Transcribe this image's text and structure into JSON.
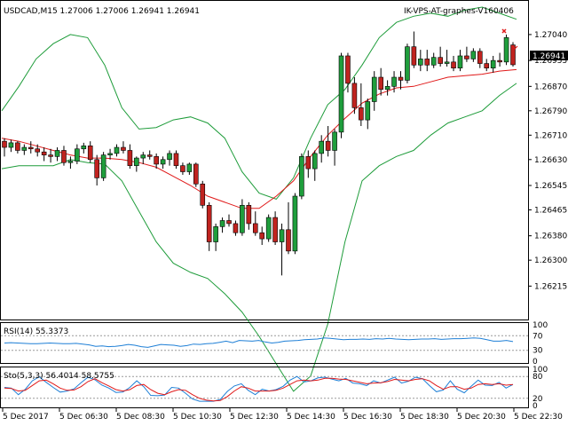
{
  "chart_data": {
    "type": "candlestick",
    "symbol_line": "USDCAD,M15  1.27006 1.27006 1.26941 1.26941",
    "indicator_label": "IK-VPS-AT-graphes-V160406",
    "price": {
      "ylim": [
        1.2612,
        1.2713
      ],
      "y_ticks": [
        "1.27040",
        "1.26955",
        "1.26870",
        "1.26790",
        "1.26710",
        "1.26630",
        "1.26545",
        "1.26465",
        "1.26380",
        "1.26300",
        "1.26215"
      ],
      "current_price": "1.26941",
      "colors": {
        "bull": "#1f9e3c",
        "bear": "#c0231f",
        "bands": "#1e9c3a",
        "ma": "#e01919",
        "current_box": "#000000"
      },
      "candles": [
        [
          1.2669,
          1.267,
          1.2664,
          1.2667
        ],
        [
          1.2667,
          1.26695,
          1.26655,
          1.26685
        ],
        [
          1.26685,
          1.2669,
          1.2665,
          1.2666
        ],
        [
          1.2666,
          1.2668,
          1.26645,
          1.2667
        ],
        [
          1.2667,
          1.2669,
          1.2665,
          1.26665
        ],
        [
          1.26665,
          1.2668,
          1.2664,
          1.26655
        ],
        [
          1.26655,
          1.2667,
          1.26625,
          1.26645
        ],
        [
          1.26645,
          1.26665,
          1.2662,
          1.2664
        ],
        [
          1.2664,
          1.2667,
          1.26625,
          1.2666
        ],
        [
          1.2666,
          1.26675,
          1.2661,
          1.2662
        ],
        [
          1.2662,
          1.2664,
          1.266,
          1.26625
        ],
        [
          1.26625,
          1.2668,
          1.26615,
          1.26665
        ],
        [
          1.26665,
          1.26685,
          1.2665,
          1.26675
        ],
        [
          1.26675,
          1.2669,
          1.2662,
          1.2663
        ],
        [
          1.2663,
          1.26645,
          1.26545,
          1.2657
        ],
        [
          1.2657,
          1.26655,
          1.2656,
          1.26645
        ],
        [
          1.26645,
          1.26665,
          1.2663,
          1.2665
        ],
        [
          1.2665,
          1.2668,
          1.2664,
          1.2667
        ],
        [
          1.2667,
          1.2669,
          1.2665,
          1.2666
        ],
        [
          1.2666,
          1.2668,
          1.266,
          1.2661
        ],
        [
          1.2661,
          1.2664,
          1.2659,
          1.26635
        ],
        [
          1.26635,
          1.26655,
          1.26615,
          1.26645
        ],
        [
          1.26645,
          1.2666,
          1.2663,
          1.2664
        ],
        [
          1.2664,
          1.2665,
          1.266,
          1.26615
        ],
        [
          1.26615,
          1.2664,
          1.266,
          1.2663
        ],
        [
          1.2663,
          1.2666,
          1.2661,
          1.2665
        ],
        [
          1.2665,
          1.2666,
          1.266,
          1.2661
        ],
        [
          1.2661,
          1.2662,
          1.2658,
          1.2659
        ],
        [
          1.2659,
          1.2662,
          1.2658,
          1.26615
        ],
        [
          1.26615,
          1.2662,
          1.2654,
          1.2655
        ],
        [
          1.2655,
          1.2656,
          1.2647,
          1.2648
        ],
        [
          1.2648,
          1.2649,
          1.2633,
          1.2636
        ],
        [
          1.2636,
          1.2642,
          1.2633,
          1.2641
        ],
        [
          1.2641,
          1.2644,
          1.2639,
          1.2643
        ],
        [
          1.2643,
          1.2645,
          1.2641,
          1.2642
        ],
        [
          1.2642,
          1.2643,
          1.2638,
          1.2639
        ],
        [
          1.2639,
          1.265,
          1.2638,
          1.2648
        ],
        [
          1.2648,
          1.2649,
          1.264,
          1.2642
        ],
        [
          1.2642,
          1.2646,
          1.2638,
          1.2639
        ],
        [
          1.2639,
          1.2641,
          1.2635,
          1.2637
        ],
        [
          1.2637,
          1.2645,
          1.2636,
          1.2644
        ],
        [
          1.2644,
          1.2646,
          1.2635,
          1.2636
        ],
        [
          1.2636,
          1.2642,
          1.2625,
          1.264
        ],
        [
          1.264,
          1.2649,
          1.2632,
          1.2633
        ],
        [
          1.2633,
          1.2652,
          1.2632,
          1.2651
        ],
        [
          1.2651,
          1.2665,
          1.265,
          1.2664
        ],
        [
          1.2664,
          1.2666,
          1.2657,
          1.266
        ],
        [
          1.266,
          1.2666,
          1.2656,
          1.2665
        ],
        [
          1.2665,
          1.2671,
          1.2662,
          1.2669
        ],
        [
          1.2669,
          1.2674,
          1.2664,
          1.2666
        ],
        [
          1.2666,
          1.2673,
          1.2661,
          1.2672
        ],
        [
          1.2672,
          1.2698,
          1.267,
          1.2697
        ],
        [
          1.2697,
          1.2698,
          1.2685,
          1.2688
        ],
        [
          1.2688,
          1.269,
          1.2678,
          1.268
        ],
        [
          1.268,
          1.2688,
          1.2674,
          1.2676
        ],
        [
          1.2676,
          1.2683,
          1.2673,
          1.2682
        ],
        [
          1.2682,
          1.2692,
          1.2679,
          1.269
        ],
        [
          1.269,
          1.2693,
          1.2684,
          1.2686
        ],
        [
          1.2686,
          1.2689,
          1.2684,
          1.2687
        ],
        [
          1.2687,
          1.2692,
          1.2685,
          1.269
        ],
        [
          1.269,
          1.2692,
          1.2686,
          1.2689
        ],
        [
          1.2689,
          1.2701,
          1.2688,
          1.27
        ],
        [
          1.27,
          1.2705,
          1.2693,
          1.2694
        ],
        [
          1.2694,
          1.2699,
          1.2692,
          1.2696
        ],
        [
          1.2696,
          1.2699,
          1.2692,
          1.2694
        ],
        [
          1.2694,
          1.2698,
          1.2693,
          1.26965
        ],
        [
          1.26965,
          1.27,
          1.26935,
          1.26945
        ],
        [
          1.26945,
          1.2699,
          1.26935,
          1.2695
        ],
        [
          1.2695,
          1.2697,
          1.2692,
          1.2693
        ],
        [
          1.2693,
          1.2699,
          1.2692,
          1.2697
        ],
        [
          1.2697,
          1.27,
          1.2695,
          1.2696
        ],
        [
          1.2696,
          1.26995,
          1.2695,
          1.26985
        ],
        [
          1.26985,
          1.26995,
          1.2693,
          1.26945
        ],
        [
          1.26945,
          1.2696,
          1.2692,
          1.2693
        ],
        [
          1.2693,
          1.2697,
          1.26915,
          1.26955
        ],
        [
          1.26955,
          1.2698,
          1.26935,
          1.2695
        ],
        [
          1.2695,
          1.2704,
          1.2694,
          1.2703
        ],
        [
          1.27006,
          1.27015,
          1.26935,
          1.26941
        ]
      ],
      "bb_upper": [
        1.2679,
        1.2687,
        1.2696,
        1.2701,
        1.2704,
        1.2703,
        1.2694,
        1.268,
        1.2673,
        1.26735,
        1.2676,
        1.2677,
        1.2675,
        1.267,
        1.2659,
        1.2652,
        1.265,
        1.2657,
        1.267,
        1.2681,
        1.2686,
        1.2694,
        1.2703,
        1.2708,
        1.271,
        1.2711,
        1.271,
        1.2712,
        1.2713,
        1.2711,
        1.2709
      ],
      "bb_lower": [
        1.266,
        1.2661,
        1.2661,
        1.2661,
        1.2663,
        1.2662,
        1.26615,
        1.2656,
        1.2646,
        1.2636,
        1.2629,
        1.2626,
        1.2624,
        1.2619,
        1.2613,
        1.2605,
        1.2596,
        1.2587,
        1.2592,
        1.2609,
        1.2636,
        1.2656,
        1.2661,
        1.2664,
        1.2666,
        1.2671,
        1.2675,
        1.2677,
        1.2679,
        1.2684,
        1.2688
      ],
      "ma": [
        1.267,
        1.2669,
        1.26675,
        1.2666,
        1.26645,
        1.26635,
        1.26635,
        1.2663,
        1.2662,
        1.26605,
        1.26575,
        1.26545,
        1.2651,
        1.2649,
        1.2647,
        1.2647,
        1.2651,
        1.2656,
        1.2664,
        1.2671,
        1.26765,
        1.26815,
        1.26845,
        1.26865,
        1.2687,
        1.26885,
        1.269,
        1.26905,
        1.2691,
        1.2692,
        1.26925
      ]
    },
    "rsi": {
      "label": "RSI(14) 55.3373",
      "levels": [
        "100",
        "70",
        "30",
        "0"
      ],
      "values": [
        50,
        51,
        50,
        49,
        48,
        48,
        49,
        50,
        49,
        48,
        48,
        49,
        47,
        45,
        41,
        42,
        40,
        41,
        43,
        46,
        44,
        40,
        38,
        42,
        46,
        45,
        44,
        41,
        43,
        47,
        46,
        48,
        49,
        52,
        55,
        51,
        57,
        56,
        55,
        57,
        53,
        50,
        52,
        55,
        56,
        57,
        59,
        60,
        61,
        64,
        63,
        61,
        59,
        60,
        60,
        61,
        60,
        62,
        61,
        63,
        61,
        60,
        59,
        60,
        61,
        61,
        62,
        60,
        61,
        62,
        62,
        63,
        64,
        63,
        59,
        55,
        55,
        57,
        54
      ]
    },
    "stochastic": {
      "label": "Sto(5,3,3) 56.4014 58.5755",
      "levels": [
        "100",
        "80",
        "20",
        "0"
      ],
      "k": [
        50,
        48,
        30,
        45,
        68,
        79,
        64,
        50,
        37,
        40,
        46,
        63,
        78,
        71,
        56,
        48,
        36,
        37,
        50,
        68,
        52,
        28,
        27,
        29,
        50,
        48,
        34,
        18,
        12,
        12,
        12,
        17,
        39,
        54,
        60,
        42,
        30,
        45,
        40,
        44,
        53,
        70,
        80,
        65,
        68,
        76,
        78,
        73,
        68,
        75,
        62,
        60,
        55,
        68,
        62,
        70,
        78,
        62,
        67,
        78,
        74,
        55,
        38,
        43,
        68,
        45,
        35,
        53,
        70,
        56,
        55,
        64,
        48,
        58
      ],
      "d": [
        48,
        47,
        40,
        42,
        55,
        68,
        70,
        60,
        48,
        42,
        43,
        52,
        66,
        74,
        63,
        54,
        44,
        40,
        44,
        55,
        58,
        44,
        34,
        30,
        38,
        44,
        42,
        30,
        20,
        15,
        13,
        14,
        25,
        40,
        52,
        48,
        40,
        40,
        40,
        42,
        48,
        58,
        68,
        70,
        68,
        70,
        75,
        75,
        73,
        72,
        68,
        64,
        60,
        62,
        63,
        66,
        72,
        70,
        68,
        72,
        74,
        68,
        55,
        45,
        52,
        52,
        45,
        48,
        58,
        60,
        58,
        60,
        56,
        58
      ]
    },
    "x_labels": [
      "5 Dec 2017",
      "5 Dec 06:30",
      "5 Dec 08:30",
      "5 Dec 10:30",
      "5 Dec 12:30",
      "5 Dec 14:30",
      "5 Dec 16:30",
      "5 Dec 18:30",
      "5 Dec 20:30",
      "5 Dec 22:30"
    ]
  }
}
